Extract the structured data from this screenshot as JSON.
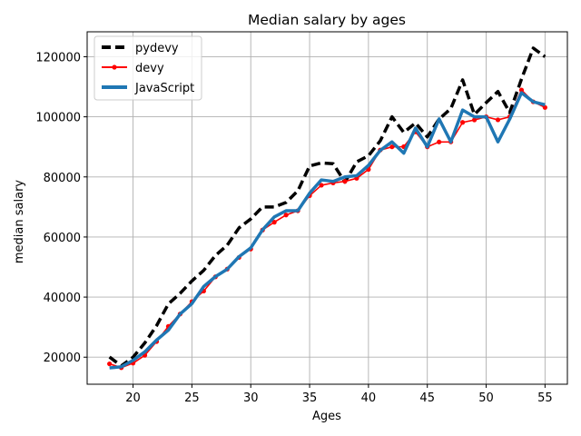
{
  "chart_data": {
    "type": "line",
    "title": "Median salary by ages",
    "xlabel": "Ages",
    "ylabel": "median salary",
    "xlim": [
      16.1,
      56.9
    ],
    "ylim": [
      11000,
      128300
    ],
    "xticks": [
      20,
      25,
      30,
      35,
      40,
      45,
      50,
      55
    ],
    "yticks": [
      20000,
      40000,
      60000,
      80000,
      100000,
      120000
    ],
    "grid": true,
    "legend_position": "top-left",
    "x": [
      18,
      19,
      20,
      21,
      22,
      23,
      24,
      25,
      26,
      27,
      28,
      29,
      30,
      31,
      32,
      33,
      34,
      35,
      36,
      37,
      38,
      39,
      40,
      41,
      42,
      43,
      44,
      45,
      46,
      47,
      48,
      49,
      50,
      51,
      52,
      53,
      54,
      55
    ],
    "series": [
      {
        "name": "pydevy",
        "color": "#000000",
        "style": "dashed",
        "values": [
          20046,
          17100,
          20000,
          24744,
          30500,
          37732,
          41247,
          45372,
          48876,
          53850,
          57287,
          63016,
          65998,
          70003,
          70000,
          71496,
          75370,
          83640,
          84666,
          84392,
          78254,
          85000,
          87038,
          91991,
          100000,
          94796,
          97962,
          93302,
          99240,
          102736,
          112285,
          100771,
          104708,
          108423,
          101407,
          112542,
          122870,
          120000
        ]
      },
      {
        "name": "devy",
        "color": "#ff0000",
        "style": "solid-marker",
        "values": [
          17784,
          16500,
          18012,
          20628,
          25206,
          30252,
          34368,
          38496,
          42000,
          46752,
          49320,
          53200,
          56000,
          62316,
          64928,
          67317,
          68748,
          73752,
          77232,
          78000,
          78508,
          79536,
          82488,
          88935,
          90000,
          90056,
          95000,
          90000,
          91633,
          91660,
          98150,
          98964,
          100000,
          98988,
          100000,
          108923,
          105000,
          103117
        ]
      },
      {
        "name": "JavaScript",
        "color": "#1f77b4",
        "style": "solid-thick",
        "values": [
          16446,
          16791,
          18942,
          21780,
          25704,
          29000,
          34372,
          37810,
          43515,
          46823,
          49293,
          53437,
          56373,
          62375,
          66674,
          68745,
          68746,
          74583,
          79000,
          78508,
          79996,
          80403,
          83820,
          88833,
          91660,
          87892,
          96243,
          90000,
          99313,
          91660,
          102264,
          100000,
          100000,
          91660,
          99240,
          108000,
          105000,
          104000
        ]
      }
    ]
  }
}
